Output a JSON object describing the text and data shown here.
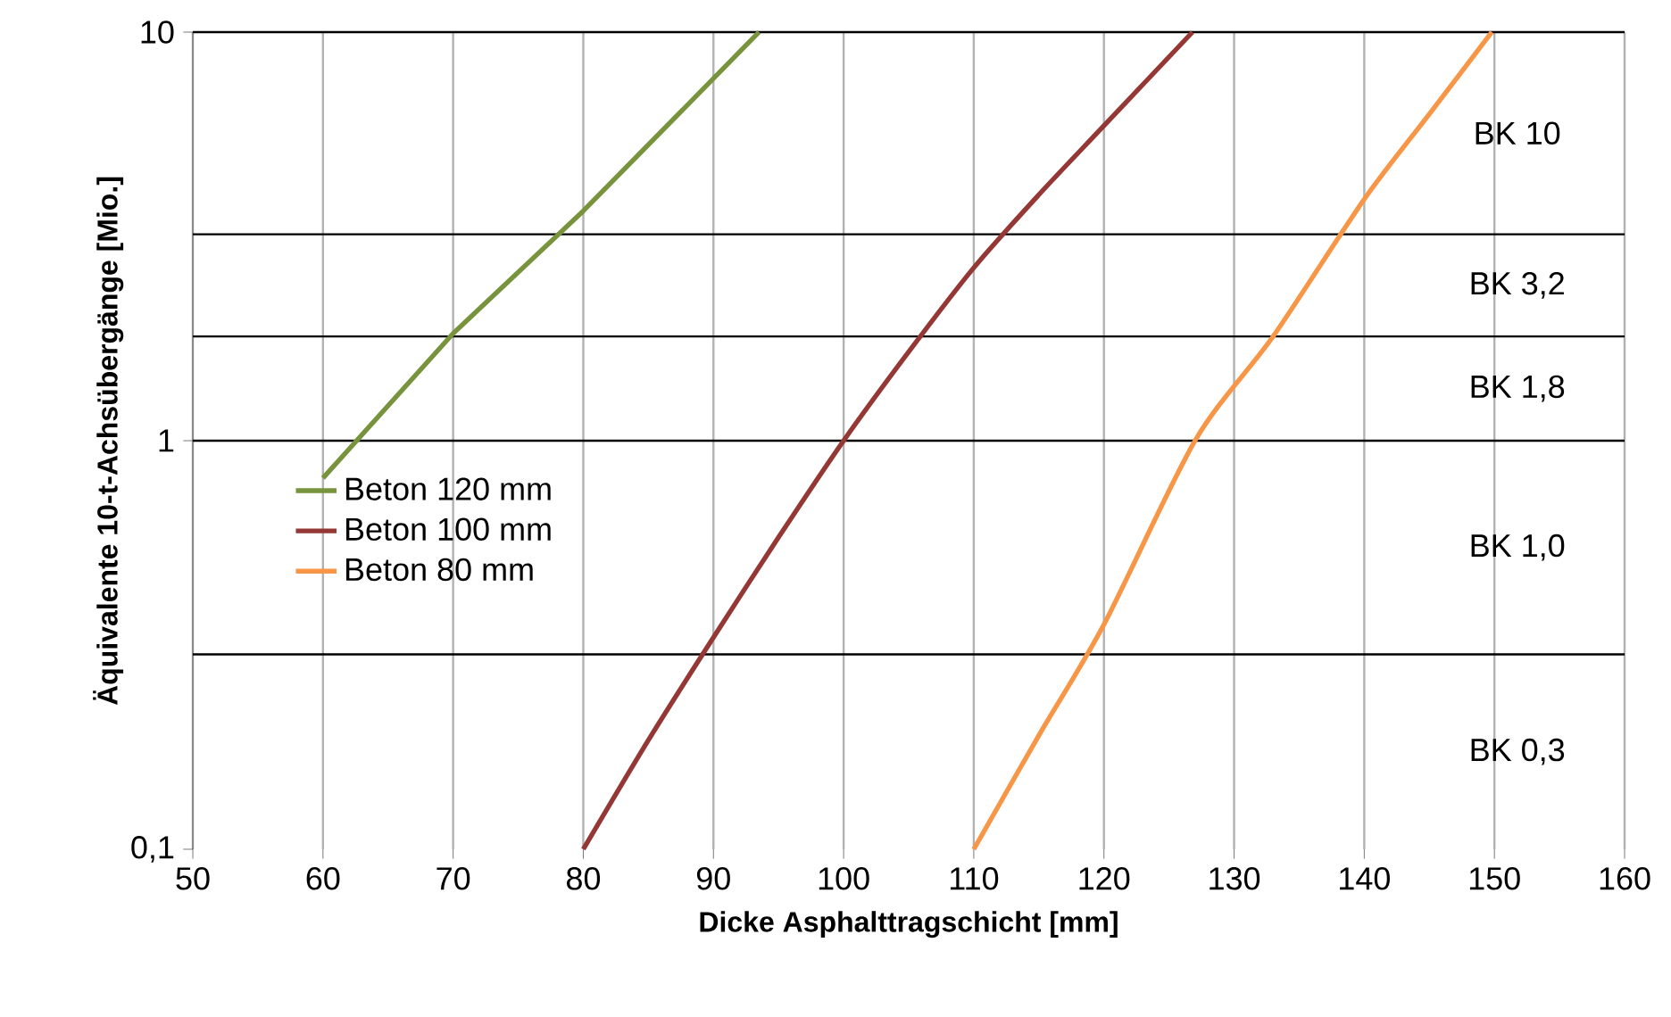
{
  "chart_data": {
    "type": "line",
    "xlabel": "Dicke Asphalttragschicht  [mm]",
    "ylabel": "Äquivalente 10-t-Achsübergänge  [Mio.]",
    "log": "y",
    "grid": "x",
    "legend": "left",
    "line_style": "solid",
    "marker": "none",
    "xlim": [
      50,
      160
    ],
    "xticks": [
      50,
      60,
      70,
      80,
      90,
      100,
      110,
      120,
      130,
      140,
      150,
      160
    ],
    "ylim": [
      0.1,
      10
    ],
    "yticks": [
      {
        "value": 0.1,
        "label": "0,1"
      },
      1,
      10
    ],
    "series": [
      {
        "name": "Beton 120 mm",
        "color": "#77933c",
        "x": [
          60,
          70,
          80,
          93.5
        ],
        "values": [
          0.81,
          1.83,
          3.65,
          10
        ]
      },
      {
        "name": "Beton 100 mm",
        "color": "#953735",
        "x": [
          80,
          85,
          90,
          95,
          100,
          105,
          110,
          115,
          120,
          126.8
        ],
        "values": [
          0.1,
          0.185,
          0.33,
          0.58,
          1.0,
          1.65,
          2.65,
          4.0,
          5.9,
          10
        ]
      },
      {
        "name": "Beton 80 mm",
        "color": "#f79646",
        "x": [
          110,
          115,
          120,
          127,
          133,
          140,
          145,
          149.8
        ],
        "values": [
          0.1,
          0.19,
          0.355,
          1.0,
          1.8,
          3.9,
          6.3,
          10
        ]
      }
    ],
    "ref_lines": [
      {
        "axis": "y",
        "value": 0.3,
        "color": "#000000"
      },
      {
        "axis": "y",
        "value": 1,
        "color": "#000000"
      },
      {
        "axis": "y",
        "value": 1.8,
        "color": "#000000"
      },
      {
        "axis": "y",
        "value": 3.2,
        "color": "#000000"
      },
      {
        "axis": "y",
        "value": 10,
        "color": "#000000"
      }
    ],
    "annotations": [
      "BK 0,3",
      "BK 1,0",
      "BK 1,8",
      "BK 3,2",
      "BK 10"
    ]
  }
}
